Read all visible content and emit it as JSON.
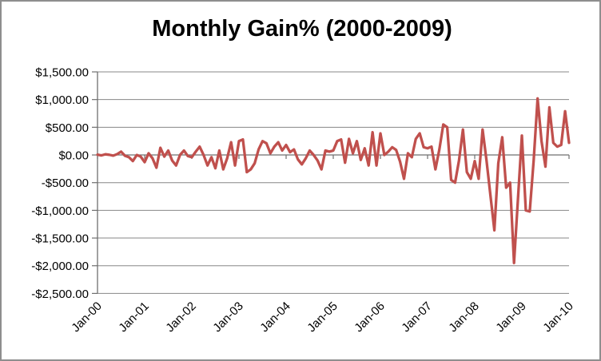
{
  "window": {
    "background": "#ffffff",
    "border_color": "#8e8e8e"
  },
  "chart_data": {
    "type": "line",
    "title": "Monthly Gain% (2000-2009)",
    "legend": "none",
    "grid": "horizontal gridlines on",
    "series_name": "Monthly Gain",
    "series_color": "#C0504D",
    "gridline_color": "#878787",
    "axis_color": "#6f6f6f",
    "x_interval": "monthly",
    "x_start": "Jan-00",
    "x_end": "Jan-10",
    "x_tick_labels": [
      "Jan-00",
      "Jan-01",
      "Jan-02",
      "Jan-03",
      "Jan-04",
      "Jan-05",
      "Jan-06",
      "Jan-07",
      "Jan-08",
      "Jan-09",
      "Jan-10"
    ],
    "y_tick_labels": [
      "$1,500.00",
      "$1,000.00",
      "$500.00",
      "$0.00",
      "-$500.00",
      "-$1,000.00",
      "-$1,500.00",
      "-$2,000.00",
      "-$2,500.00"
    ],
    "y_tick_values": [
      1500,
      1000,
      500,
      0,
      -500,
      -1000,
      -1500,
      -2000,
      -2500
    ],
    "ylim": [
      -2500,
      1500
    ],
    "values": [
      5,
      -8,
      12,
      3,
      -12,
      15,
      60,
      -15,
      -40,
      -110,
      0,
      -30,
      -130,
      30,
      -60,
      -230,
      130,
      -30,
      80,
      -100,
      -190,
      0,
      80,
      -20,
      -40,
      60,
      150,
      0,
      -190,
      -40,
      -240,
      80,
      -260,
      -60,
      230,
      -190,
      250,
      280,
      -310,
      -260,
      -150,
      100,
      250,
      210,
      30,
      150,
      230,
      80,
      180,
      50,
      100,
      -80,
      -170,
      -60,
      80,
      0,
      -100,
      -260,
      80,
      60,
      80,
      250,
      280,
      -140,
      290,
      30,
      250,
      -90,
      120,
      -190,
      410,
      -190,
      390,
      0,
      60,
      140,
      90,
      -120,
      -430,
      30,
      -40,
      290,
      390,
      140,
      120,
      150,
      -260,
      100,
      550,
      500,
      -450,
      -500,
      -100,
      460,
      -310,
      -430,
      -110,
      -430,
      460,
      -100,
      -730,
      -1360,
      -150,
      320,
      -590,
      -500,
      -1950,
      -800,
      350,
      -1000,
      -1020,
      -100,
      1020,
      250,
      -210,
      860,
      220,
      150,
      180,
      790,
      220
    ]
  }
}
